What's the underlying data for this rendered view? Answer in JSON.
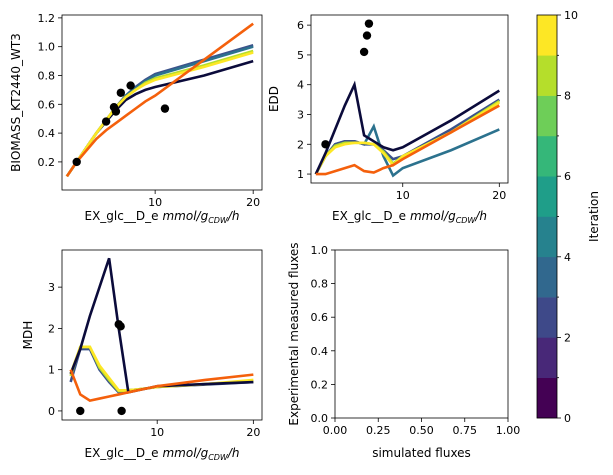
{
  "chart_data": [
    {
      "type": "line",
      "ylabel": "BIOMASS_KT2440_WT3",
      "xlabel": "EX_glc__D_e",
      "xlabel_unit": [
        "mmol/g",
        "CDW",
        "/h"
      ],
      "xlim": [
        0.5,
        20.9
      ],
      "ylim": [
        0.005,
        1.22
      ],
      "xticks": [
        10,
        20
      ],
      "yticks": [
        0.2,
        0.4,
        0.6,
        0.8,
        {
          "value": 1.0,
          "label": "1.0"
        },
        1.2
      ],
      "x": [
        1,
        2,
        3,
        4,
        5,
        6,
        7,
        8,
        9,
        10,
        15,
        20
      ],
      "series": [
        {
          "color": "#0b0b3b",
          "values": [
            0.1,
            0.2,
            0.3,
            0.4,
            0.48,
            0.56,
            0.63,
            0.67,
            0.7,
            0.72,
            0.8,
            0.9
          ]
        },
        {
          "color": "#3b528b",
          "values": [
            0.1,
            0.2,
            0.3,
            0.4,
            0.49,
            0.58,
            0.66,
            0.72,
            0.77,
            0.81,
            0.91,
            1.01
          ]
        },
        {
          "color": "#2c728e",
          "values": [
            0.1,
            0.2,
            0.3,
            0.4,
            0.49,
            0.58,
            0.66,
            0.71,
            0.76,
            0.8,
            0.9,
            1.0
          ]
        },
        {
          "color": "#b5de2b",
          "values": [
            0.1,
            0.2,
            0.3,
            0.4,
            0.49,
            0.58,
            0.65,
            0.7,
            0.75,
            0.78,
            0.87,
            0.97
          ]
        },
        {
          "color": "#fde725",
          "values": [
            0.1,
            0.2,
            0.3,
            0.4,
            0.49,
            0.58,
            0.65,
            0.7,
            0.74,
            0.77,
            0.86,
            0.96
          ]
        },
        {
          "color": "#f4600c",
          "values": [
            0.1,
            0.2,
            0.28,
            0.36,
            0.42,
            0.47,
            0.52,
            0.57,
            0.62,
            0.66,
            0.91,
            1.16
          ]
        }
      ],
      "points": {
        "color": "#000000",
        "x": [
          2,
          5,
          5.8,
          6,
          6.5,
          7.5,
          11
        ],
        "y": [
          0.2,
          0.48,
          0.58,
          0.55,
          0.68,
          0.73,
          0.57
        ]
      }
    },
    {
      "type": "line",
      "ylabel": "EDD",
      "xlabel": "EX_glc__D_e",
      "xlabel_unit": [
        "mmol/g",
        "CDW",
        "/h"
      ],
      "xlim": [
        0.5,
        20.9
      ],
      "ylim": [
        0.7,
        6.34
      ],
      "xticks": [
        10,
        20
      ],
      "yticks": [
        1,
        2,
        3,
        4,
        5,
        6
      ],
      "x": [
        1,
        2,
        3,
        4,
        5,
        6,
        7,
        8,
        9,
        10,
        15,
        20
      ],
      "series": [
        {
          "color": "#2c728e",
          "values": [
            1,
            1.6,
            2,
            2.1,
            2.1,
            2.0,
            2.6,
            1.6,
            0.95,
            1.2,
            1.8,
            2.5
          ]
        },
        {
          "color": "#3b528b",
          "values": [
            1,
            1.6,
            2,
            2.1,
            2.1,
            2.0,
            2.0,
            1.8,
            1.5,
            1.6,
            2.5,
            3.5
          ]
        },
        {
          "color": "#b5de2b",
          "values": [
            1,
            1.6,
            1.95,
            2.05,
            2.05,
            2.05,
            2.0,
            1.75,
            1.35,
            1.6,
            2.4,
            3.45
          ]
        },
        {
          "color": "#fde725",
          "values": [
            1,
            1.6,
            1.9,
            2.0,
            2.05,
            2.05,
            2.0,
            1.7,
            1.3,
            1.6,
            2.4,
            3.4
          ]
        },
        {
          "color": "#0b0b3b",
          "values": [
            1,
            1.7,
            2.5,
            3.3,
            4,
            2.3,
            2.1,
            1.9,
            1.8,
            1.9,
            2.8,
            3.8
          ]
        },
        {
          "color": "#f4600c",
          "values": [
            1,
            1,
            1.1,
            1.2,
            1.3,
            1.1,
            1.05,
            1.2,
            1.3,
            1.5,
            2.4,
            3.3
          ]
        }
      ],
      "points": {
        "color": "#000000",
        "x": [
          2,
          6,
          6.3,
          6.5
        ],
        "y": [
          2,
          5.1,
          5.65,
          6.05
        ]
      }
    },
    {
      "type": "line",
      "ylabel": "MDH",
      "xlabel": "EX_glc__D_e",
      "xlabel_unit": [
        "mmol/g",
        "CDW",
        "/h"
      ],
      "xlim": [
        0.1,
        20.9
      ],
      "ylim": [
        -0.22,
        3.9
      ],
      "xticks": [
        10,
        20
      ],
      "yticks": [
        0,
        1,
        2,
        3
      ],
      "x": [
        1,
        2,
        3,
        4,
        5,
        6,
        7,
        8,
        9,
        10,
        15,
        20
      ],
      "series": [
        {
          "color": "#3b528b",
          "values": [
            0.7,
            1.5,
            1.5,
            1.0,
            0.7,
            0.45,
            0.5,
            0.52,
            0.55,
            0.58,
            0.64,
            0.7
          ]
        },
        {
          "color": "#b5de2b",
          "values": [
            0.85,
            1.55,
            1.55,
            1.05,
            0.75,
            0.48,
            0.5,
            0.52,
            0.55,
            0.58,
            0.65,
            0.73
          ]
        },
        {
          "color": "#fde725",
          "values": [
            0.9,
            1.55,
            1.55,
            1.1,
            0.8,
            0.5,
            0.5,
            0.52,
            0.55,
            0.58,
            0.65,
            0.75
          ]
        },
        {
          "color": "#0b0b3b",
          "values": [
            0.9,
            1.5,
            2.3,
            3.0,
            3.7,
            2.0,
            0.45,
            0.5,
            0.55,
            0.6,
            0.65,
            0.7
          ]
        },
        {
          "color": "#f4600c",
          "values": [
            1.0,
            0.4,
            0.25,
            0.3,
            0.35,
            0.4,
            0.45,
            0.5,
            0.55,
            0.6,
            0.75,
            0.88
          ]
        }
      ],
      "points": {
        "color": "#000000",
        "x": [
          2,
          6,
          6.2,
          6.3
        ],
        "y": [
          0,
          2.1,
          2.05,
          0
        ]
      }
    },
    {
      "type": "line",
      "ylabel": "Experimental measured fluxes",
      "xlabel": "simulated fluxes",
      "xlim": [
        0,
        1
      ],
      "ylim": [
        0,
        1
      ],
      "xticks": [
        {
          "value": 0,
          "label": "0.00"
        },
        {
          "value": 0.25,
          "label": "0.25"
        },
        {
          "value": 0.5,
          "label": "0.50"
        },
        {
          "value": 0.75,
          "label": "0.75"
        },
        {
          "value": 1,
          "label": "1.00"
        }
      ],
      "yticks": [
        {
          "value": 0,
          "label": "0.0"
        },
        0.2,
        0.4,
        0.6,
        0.8,
        {
          "value": 1,
          "label": "1.0"
        }
      ],
      "series": []
    },
    {
      "type": "colorbar",
      "label": "Iteration",
      "lim": [
        0,
        10
      ],
      "colors": [
        "#440154",
        "#482878",
        "#3e4989",
        "#31688e",
        "#26828e",
        "#1f9e89",
        "#35b779",
        "#6ece58",
        "#b5de2b",
        "#fde725"
      ],
      "ticks": [
        0,
        2,
        4,
        6,
        8,
        10
      ],
      "minor_ticks": [
        1,
        3,
        5,
        7,
        9
      ]
    }
  ]
}
